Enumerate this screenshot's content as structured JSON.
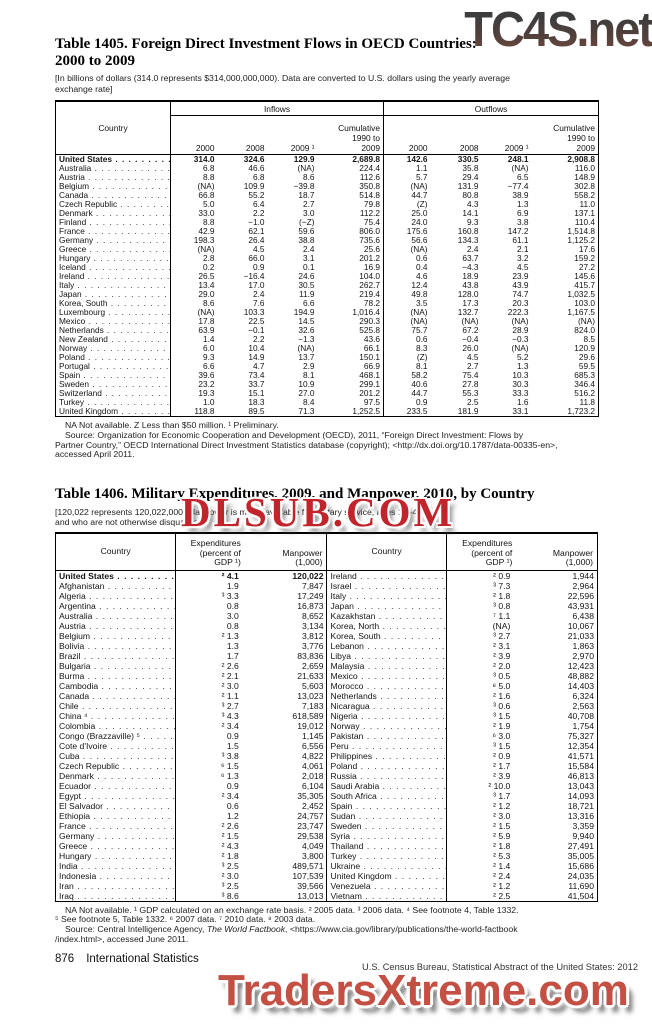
{
  "watermarks": {
    "top": "TC4S.net",
    "middle": "DLSUB.COM",
    "bottom": "TradersXtreme.com"
  },
  "table1405": {
    "title_l1": "Table 1405. Foreign Direct Investment Flows in OECD Countries:",
    "title_l2": "2000 to 2009",
    "headnote_l1": "[In billions of dollars (314.0 represents $314,000,000,000). Data are converted to U.S. dollars using the yearly average",
    "headnote_l2": "exchange rate]",
    "col_country": "Country",
    "group_inflows": "Inflows",
    "group_outflows": "Outflows",
    "years": [
      "2000",
      "2008",
      "2009 ¹"
    ],
    "cumulative": [
      "Cumulative",
      "1990 to",
      "2009"
    ],
    "rows": [
      {
        "c": "United States",
        "b": true,
        "v": [
          "314.0",
          "324.6",
          "129.9",
          "2,689.8",
          "142.6",
          "330.5",
          "248.1",
          "2,908.8"
        ]
      },
      {
        "c": "Australia",
        "v": [
          "6.8",
          "46.6",
          "(NA)",
          "224.4",
          "1.1",
          "35.8",
          "(NA)",
          "116.0"
        ]
      },
      {
        "c": "Austria",
        "v": [
          "8.8",
          "6.8",
          "8.6",
          "112.6",
          "5.7",
          "29.4",
          "6.5",
          "148.9"
        ]
      },
      {
        "c": "Belgium",
        "v": [
          "(NA)",
          "109.9",
          "−39.8",
          "350.8",
          "(NA)",
          "131.9",
          "−77.4",
          "302.8"
        ]
      },
      {
        "c": "Canada",
        "v": [
          "66.8",
          "55.2",
          "18.7",
          "514.8",
          "44.7",
          "80.8",
          "38.9",
          "558.2"
        ]
      },
      {
        "c": "Czech Republic",
        "v": [
          "5.0",
          "6.4",
          "2.7",
          "79.8",
          "(Z)",
          "4.3",
          "1.3",
          "11.0"
        ]
      },
      {
        "c": "Denmark",
        "v": [
          "33.0",
          "2.2",
          "3.0",
          "112.2",
          "25.0",
          "14.1",
          "6.9",
          "137.1"
        ]
      },
      {
        "c": "Finland",
        "v": [
          "8.8",
          "−1.0",
          "(−Z)",
          "75.4",
          "24.0",
          "9.3",
          "3.8",
          "110.4"
        ]
      },
      {
        "c": "France",
        "v": [
          "42.9",
          "62.1",
          "59.6",
          "806.0",
          "175.6",
          "160.8",
          "147.2",
          "1,514.8"
        ]
      },
      {
        "c": "Germany",
        "v": [
          "198.3",
          "26.4",
          "38.8",
          "735.6",
          "56.6",
          "134.3",
          "61.1",
          "1,125.2"
        ]
      },
      {
        "c": "Greece",
        "v": [
          "(NA)",
          "4.5",
          "2.4",
          "25.6",
          "(NA)",
          "2.4",
          "2.1",
          "17.6"
        ]
      },
      {
        "c": "Hungary",
        "v": [
          "2.8",
          "66.0",
          "3.1",
          "201.2",
          "0.6",
          "63.7",
          "3.2",
          "159.2"
        ]
      },
      {
        "c": "Iceland",
        "v": [
          "0.2",
          "0.9",
          "0.1",
          "16.9",
          "0.4",
          "−4.3",
          "4.5",
          "27.2"
        ]
      },
      {
        "c": "Ireland",
        "v": [
          "26.5",
          "−16.4",
          "24.6",
          "104.0",
          "4.6",
          "18.9",
          "23.9",
          "145.6"
        ]
      },
      {
        "c": "Italy",
        "v": [
          "13.4",
          "17.0",
          "30.5",
          "262.7",
          "12.4",
          "43.8",
          "43.9",
          "415.7"
        ]
      },
      {
        "c": "Japan",
        "v": [
          "29.0",
          "2.4",
          "11.9",
          "219.4",
          "49.8",
          "128.0",
          "74.7",
          "1,032.5"
        ]
      },
      {
        "c": "Korea, South",
        "v": [
          "8.6",
          "7.6",
          "6.6",
          "78.2",
          "3.5",
          "17.3",
          "20.3",
          "103.0"
        ]
      },
      {
        "c": "Luxembourg",
        "v": [
          "(NA)",
          "103.3",
          "194.9",
          "1,016.4",
          "(NA)",
          "132.7",
          "222.3",
          "1,167.5"
        ]
      },
      {
        "c": "Mexico",
        "v": [
          "17.8",
          "22.5",
          "14.5",
          "290.3",
          "(NA)",
          "(NA)",
          "(NA)",
          "(NA)"
        ]
      },
      {
        "c": "Netherlands",
        "v": [
          "63.9",
          "−0.1",
          "32.6",
          "525.8",
          "75.7",
          "67.2",
          "28.9",
          "824.0"
        ]
      },
      {
        "c": "New Zealand",
        "v": [
          "1.4",
          "2.2",
          "−1.3",
          "43.6",
          "0.6",
          "−0.4",
          "−0.3",
          "8.5"
        ]
      },
      {
        "c": "Norway",
        "v": [
          "6.0",
          "10.4",
          "(NA)",
          "66.1",
          "8.3",
          "26.0",
          "(NA)",
          "120.9"
        ]
      },
      {
        "c": "Poland",
        "v": [
          "9.3",
          "14.9",
          "13.7",
          "150.1",
          "(Z)",
          "4.5",
          "5.2",
          "29.6"
        ]
      },
      {
        "c": "Portugal",
        "v": [
          "6.6",
          "4.7",
          "2.9",
          "66.9",
          "8.1",
          "2.7",
          "1.3",
          "59.5"
        ]
      },
      {
        "c": "Spain",
        "v": [
          "39.6",
          "73.4",
          "8.1",
          "468.1",
          "58.2",
          "75.4",
          "10.3",
          "685.3"
        ]
      },
      {
        "c": "Sweden",
        "v": [
          "23.2",
          "33.7",
          "10.9",
          "299.1",
          "40.6",
          "27.8",
          "30.3",
          "346.4"
        ]
      },
      {
        "c": "Switzerland",
        "v": [
          "19.3",
          "15.1",
          "27.0",
          "201.2",
          "44.7",
          "55.3",
          "33.3",
          "516.2"
        ]
      },
      {
        "c": "Turkey",
        "v": [
          "1.0",
          "18.3",
          "8.4",
          "97.5",
          "0.9",
          "2.5",
          "1.6",
          "11.8"
        ]
      },
      {
        "c": "United Kingdom",
        "v": [
          "118.8",
          "89.5",
          "71.3",
          "1,252.5",
          "233.5",
          "181.9",
          "33.1",
          "1,723.2"
        ]
      }
    ],
    "footnote": "NA Not available. Z Less than $50 million. ¹ Preliminary.",
    "source_l1": "Source: Organization for Economic Cooperation and Development (OECD), 2011, “Foreign Direct Investment: Flows by",
    "source_l2": "Partner Country,” OECD International Direct Investment Statistics database (copyright); <http://dx.doi.org/10.1787/data-00335-en>,",
    "source_l3": "accessed April 2011."
  },
  "table1406": {
    "title": "Table 1406. Military Expenditures, 2009, and Manpower, 2010, by Country",
    "headnote_l1": "[120,022 represents 120,022,000. Manpower is males available for military service, ages 16–49,",
    "headnote_l2": "and who are not otherwise disqualified]",
    "col_country": "Country",
    "exp_h": [
      "Expenditures",
      "(percent of",
      "GDP ¹)"
    ],
    "man_h": [
      "Manpower",
      "(1,000)"
    ],
    "left": [
      {
        "c": "United States",
        "b": true,
        "e": "² 4.1",
        "m": "120,022"
      },
      {
        "c": "Afghanistan",
        "e": "1.9",
        "m": "7,847"
      },
      {
        "c": "Algeria",
        "e": "³ 3.3",
        "m": "17,249"
      },
      {
        "c": "Argentina",
        "e": "0.8",
        "m": "16,873"
      },
      {
        "c": "Australia",
        "e": "3.0",
        "m": "8,652"
      },
      {
        "c": "Austria",
        "e": "0.8",
        "m": "3,134"
      },
      {
        "c": "Belgium",
        "e": "² 1.3",
        "m": "3,812"
      },
      {
        "c": "Bolivia",
        "e": "1.3",
        "m": "3,776"
      },
      {
        "c": "Brazil",
        "e": "1.7",
        "m": "83,836"
      },
      {
        "c": "Bulgaria",
        "e": "² 2.6",
        "m": "2,659"
      },
      {
        "c": "Burma",
        "e": "² 2.1",
        "m": "21,633"
      },
      {
        "c": "Cambodia",
        "e": "² 3.0",
        "m": "5,603"
      },
      {
        "c": "Canada",
        "e": "² 1.1",
        "m": "13,023"
      },
      {
        "c": "Chile",
        "e": "³ 2.7",
        "m": "7,183"
      },
      {
        "c": "China ⁴",
        "e": "³ 4.3",
        "m": "618,589"
      },
      {
        "c": "Colombia",
        "e": "² 3.4",
        "m": "19,012"
      },
      {
        "c": "Congo (Brazzaville) ⁵",
        "e": "0.9",
        "m": "1,145"
      },
      {
        "c": "Cote d'Ivoire",
        "e": "1.5",
        "m": "6,556"
      },
      {
        "c": "Cuba",
        "e": "³ 3.8",
        "m": "4,822"
      },
      {
        "c": "Czech Republic",
        "e": "⁶ 1.5",
        "m": "4,061"
      },
      {
        "c": "Denmark",
        "e": "⁶ 1.3",
        "m": "2,018"
      },
      {
        "c": "Ecuador",
        "e": "0.9",
        "m": "6,104"
      },
      {
        "c": "Egypt",
        "e": "² 3.4",
        "m": "35,305"
      },
      {
        "c": "El Salvador",
        "e": "0.6",
        "m": "2,452"
      },
      {
        "c": "Ethiopia",
        "e": "1.2",
        "m": "24,757"
      },
      {
        "c": "France",
        "e": "² 2.6",
        "m": "23,747"
      },
      {
        "c": "Germany",
        "e": "² 1.5",
        "m": "29,538"
      },
      {
        "c": "Greece",
        "e": "² 4.3",
        "m": "4,049"
      },
      {
        "c": "Hungary",
        "e": "² 1.8",
        "m": "3,800"
      },
      {
        "c": "India",
        "e": "³ 2.5",
        "m": "489,571"
      },
      {
        "c": "Indonesia",
        "e": "² 3.0",
        "m": "107,539"
      },
      {
        "c": "Iran",
        "e": "³ 2.5",
        "m": "39,566"
      },
      {
        "c": "Iraq",
        "e": "³ 8.6",
        "m": "13,013"
      }
    ],
    "right": [
      {
        "c": "Ireland",
        "e": "² 0.9",
        "m": "1,944"
      },
      {
        "c": "Israel",
        "e": "³ 7.3",
        "m": "2,964"
      },
      {
        "c": "Italy",
        "e": "² 1.8",
        "m": "22,596"
      },
      {
        "c": "Japan",
        "e": "³ 0.8",
        "m": "43,931"
      },
      {
        "c": "Kazakhstan",
        "e": "⁷ 1.1",
        "m": "6,438"
      },
      {
        "c": "Korea, North",
        "e": "(NA)",
        "m": "10,067"
      },
      {
        "c": "Korea, South",
        "e": "³ 2.7",
        "m": "21,033"
      },
      {
        "c": "Lebanon",
        "e": "² 3.1",
        "m": "1,863"
      },
      {
        "c": "Libya",
        "e": "² 3.9",
        "m": "2,970"
      },
      {
        "c": "Malaysia",
        "e": "² 2.0",
        "m": "12,423"
      },
      {
        "c": "Mexico",
        "e": "³ 0.5",
        "m": "48,882"
      },
      {
        "c": "Morocco",
        "e": "⁸ 5.0",
        "m": "14,403"
      },
      {
        "c": "Netherlands",
        "e": "² 1.6",
        "m": "6,324"
      },
      {
        "c": "Nicaragua",
        "e": "³ 0.6",
        "m": "2,563"
      },
      {
        "c": "Nigeria",
        "e": "³ 1.5",
        "m": "40,708"
      },
      {
        "c": "Norway",
        "e": "² 1.9",
        "m": "1,754"
      },
      {
        "c": "Pakistan",
        "e": "⁶ 3.0",
        "m": "75,327"
      },
      {
        "c": "Peru",
        "e": "³ 1.5",
        "m": "12,354"
      },
      {
        "c": "Philippines",
        "e": "² 0.9",
        "m": "41,571"
      },
      {
        "c": "Poland",
        "e": "² 1.7",
        "m": "15,584"
      },
      {
        "c": "Russia",
        "e": "² 3.9",
        "m": "46,813"
      },
      {
        "c": "Saudi Arabia",
        "e": "² 10.0",
        "m": "13,043"
      },
      {
        "c": "South Africa",
        "e": "³ 1.7",
        "m": "14,093"
      },
      {
        "c": "Spain",
        "e": "² 1.2",
        "m": "18,721"
      },
      {
        "c": "Sudan",
        "e": "² 3.0",
        "m": "13,316"
      },
      {
        "c": "Sweden",
        "e": "² 1.5",
        "m": "3,359"
      },
      {
        "c": "Syria",
        "e": "² 5.9",
        "m": "9,940"
      },
      {
        "c": "Thailand",
        "e": "² 1.8",
        "m": "27,491"
      },
      {
        "c": "Turkey",
        "e": "² 5.3",
        "m": "35,005"
      },
      {
        "c": "Ukraine",
        "e": "² 1.4",
        "m": "15,686"
      },
      {
        "c": "United Kingdom",
        "e": "² 2.4",
        "m": "24,035"
      },
      {
        "c": "Venezuela",
        "e": "² 1.2",
        "m": "11,690"
      },
      {
        "c": "Vietnam",
        "e": "² 2.5",
        "m": "41,504"
      }
    ],
    "footnote_l1": "NA Not available. ¹ GDP calculated on an exchange rate basis. ² 2005 data. ³ 2006 data. ⁴ See footnote 4, Table 1332.",
    "footnote_l2": "⁵ See footnote 5, Table 1332. ⁶ 2007 data. ⁷ 2010 data. ⁸ 2003 data.",
    "source_pre": "Source: Central Intelligence Agency, ",
    "source_italic": "The World Factbook",
    "source_post": ", <https://www.cia.gov/library/publications/the-world-factbook",
    "source_l2": "/index.html>, accessed June 2011."
  },
  "footer": {
    "page_number": "876",
    "section": "International Statistics",
    "credit": "U.S. Census Bureau, Statistical Abstract of the United States: 2012"
  }
}
